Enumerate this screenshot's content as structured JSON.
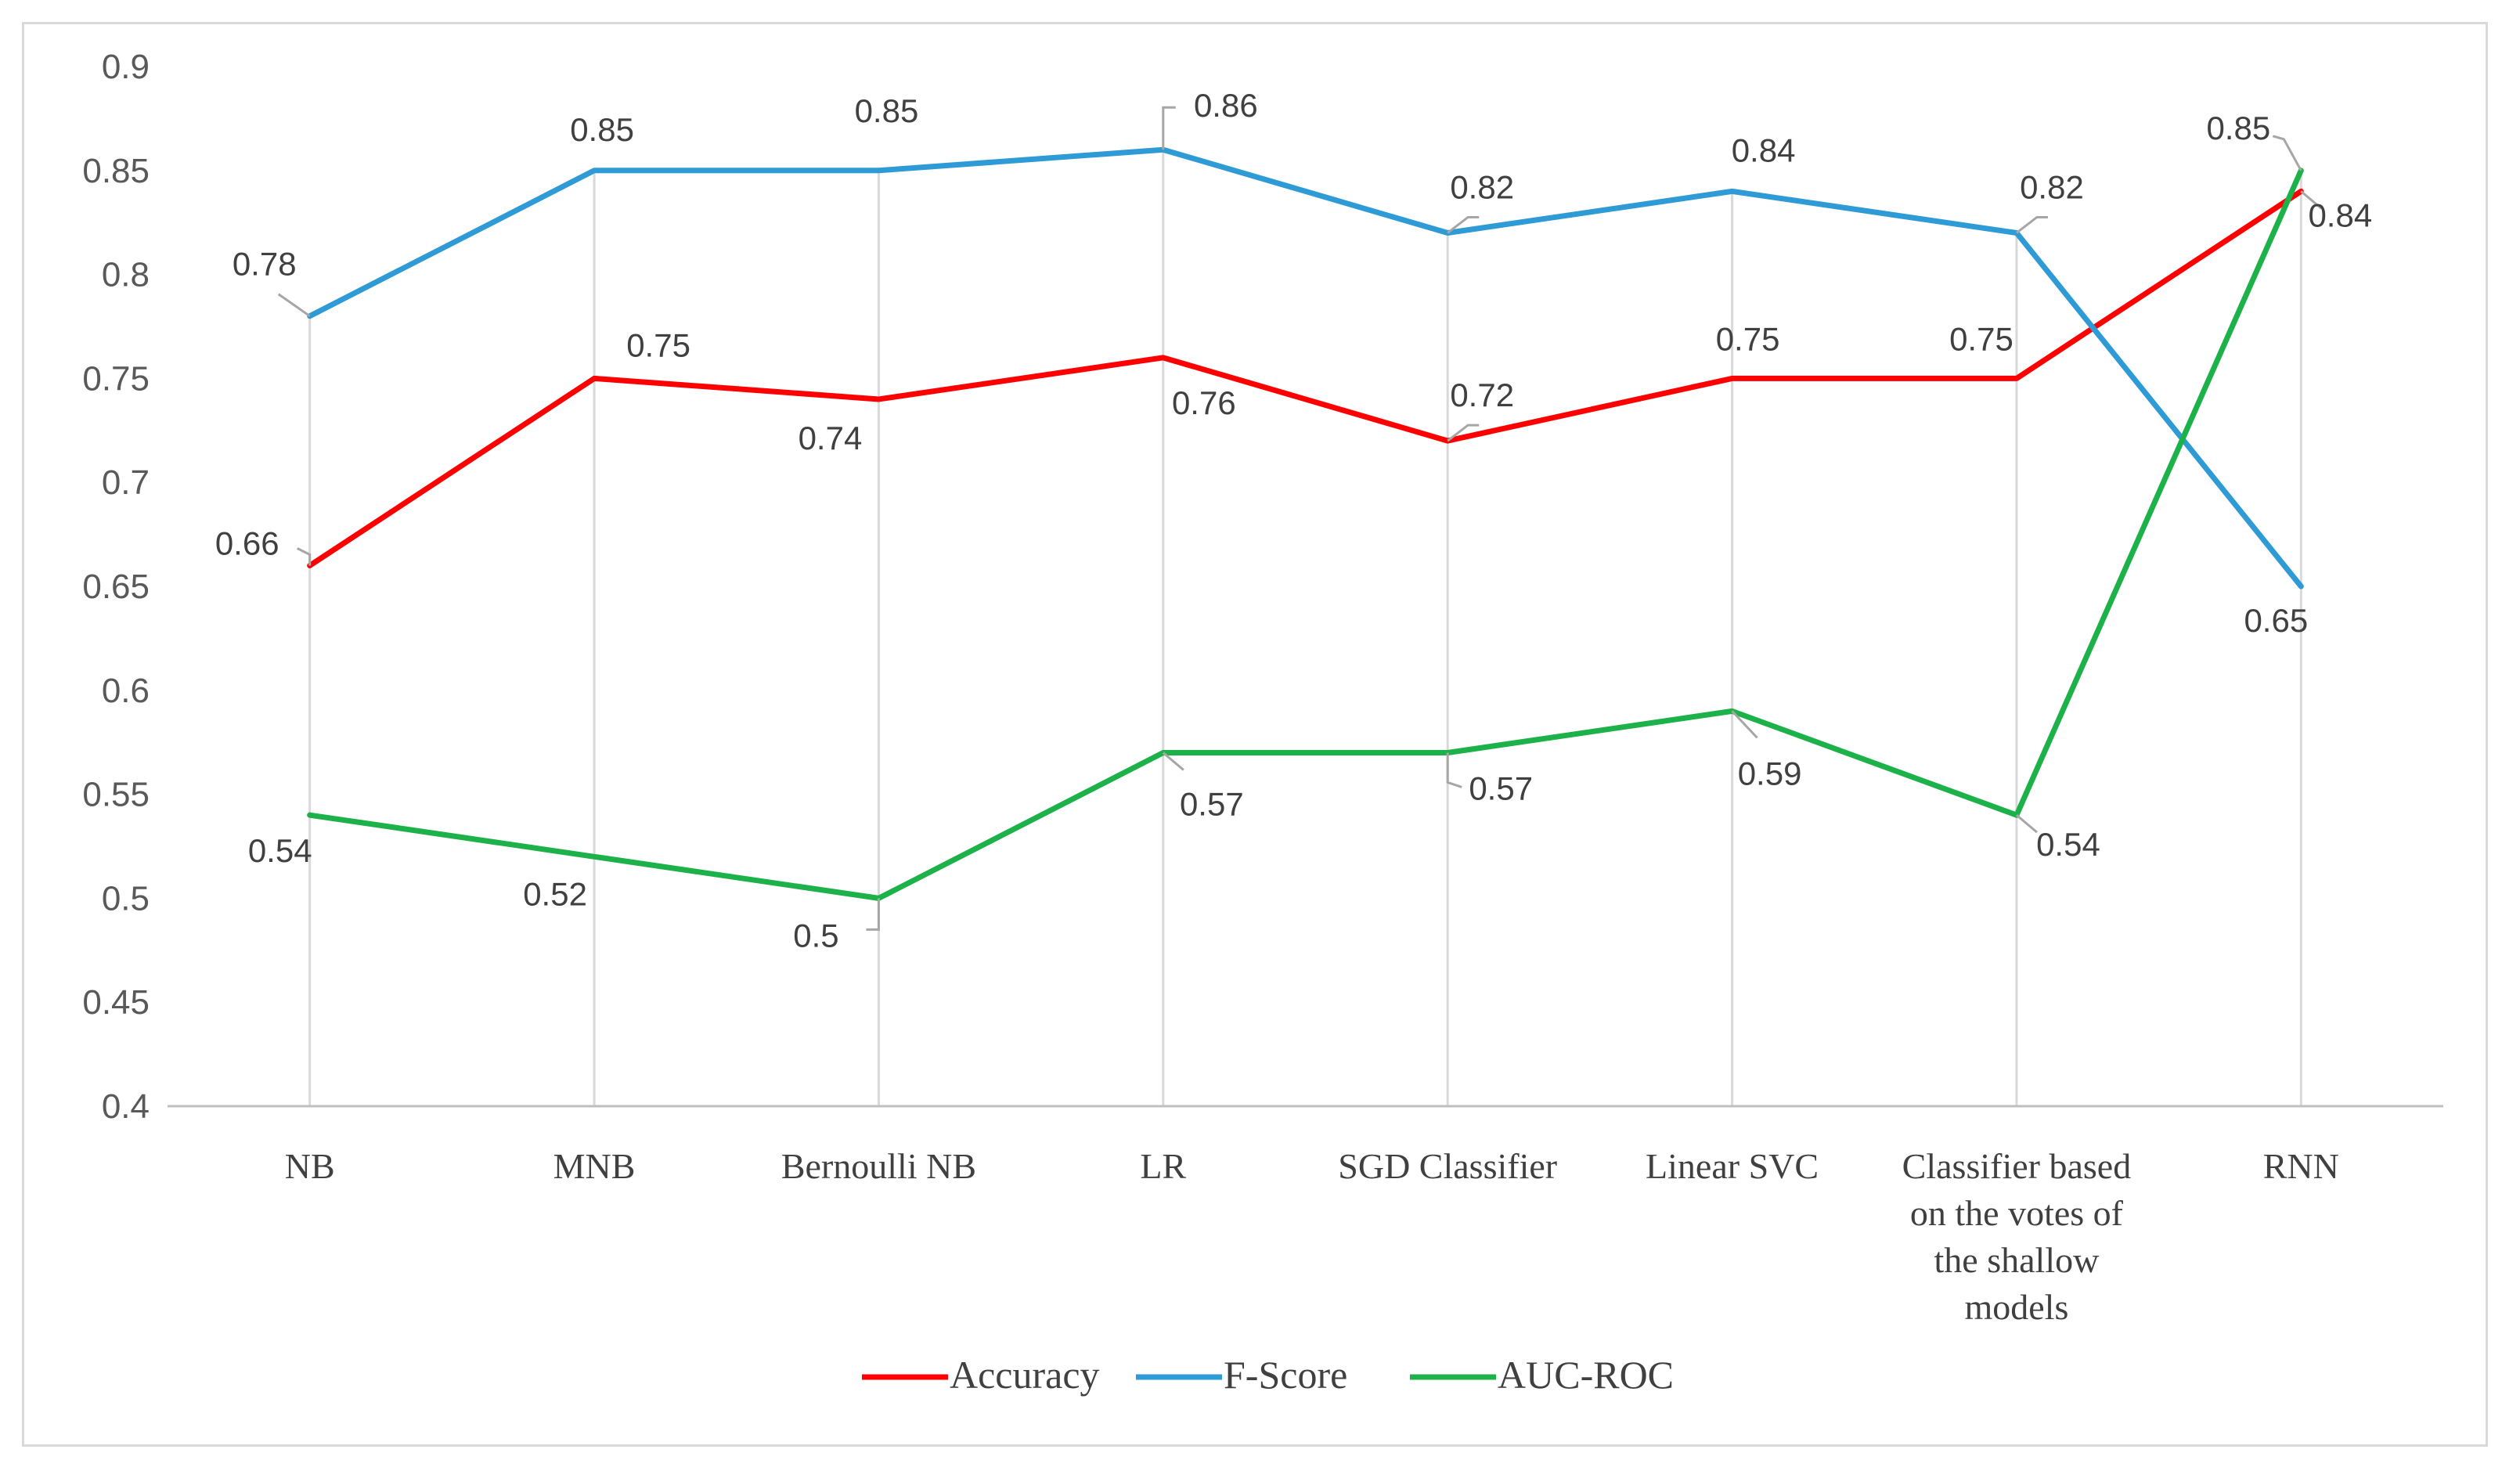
{
  "chart_data": {
    "type": "line",
    "title": "",
    "xlabel": "",
    "ylabel": "",
    "ylim": [
      0.4,
      0.9
    ],
    "ytick_step": 0.05,
    "y_ticks": [
      "0.4",
      "0.45",
      "0.5",
      "0.55",
      "0.6",
      "0.65",
      "0.7",
      "0.75",
      "0.8",
      "0.85",
      "0.9"
    ],
    "grid": "vertical drop lines at each category",
    "legend_position": "bottom",
    "categories": [
      [
        "NB"
      ],
      [
        "MNB"
      ],
      [
        "Bernoulli NB"
      ],
      [
        "LR"
      ],
      [
        "SGD Classifier"
      ],
      [
        "Linear SVC"
      ],
      [
        "Classifier based",
        "on the votes of",
        "the shallow",
        "models"
      ],
      [
        "RNN"
      ]
    ],
    "series": [
      {
        "name": "Accuracy",
        "color": "#ff0000",
        "values": [
          0.66,
          0.75,
          0.74,
          0.76,
          0.72,
          0.75,
          0.75,
          0.84
        ],
        "labels": [
          "0.66",
          "0.75",
          "0.74",
          "0.76",
          "0.72",
          "0.75",
          "0.75",
          "0.84"
        ]
      },
      {
        "name": "F-Score",
        "color": "#2e9ad6",
        "values": [
          0.78,
          0.85,
          0.85,
          0.86,
          0.82,
          0.84,
          0.82,
          0.65
        ],
        "labels": [
          "0.78",
          "0.85",
          "0.85",
          "0.86",
          "0.82",
          "0.84",
          "0.82",
          "0.65"
        ]
      },
      {
        "name": "AUC-ROC",
        "color": "#1db14a",
        "values": [
          0.54,
          0.52,
          0.5,
          0.57,
          0.57,
          0.59,
          0.54,
          0.85
        ],
        "labels": [
          "0.54",
          "0.52",
          "0.5",
          "0.57",
          "0.57",
          "0.59",
          "0.54",
          "0.85"
        ]
      }
    ]
  }
}
